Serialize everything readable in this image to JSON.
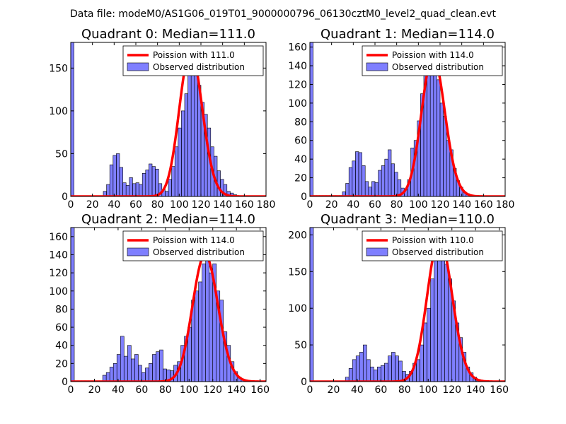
{
  "suptitle": "Data file: modeM0/AS1G06_019T01_9000000796_06130cztM0_level2_quad_clean.evt",
  "chart_data": [
    {
      "type": "bar",
      "title": "Quadrant 0: Median=111.0",
      "median": 111.0,
      "xlim": [
        0,
        180
      ],
      "ylim": [
        0,
        180
      ],
      "xticks": [
        "0",
        "20",
        "40",
        "60",
        "80",
        "100",
        "120",
        "140",
        "160",
        "180"
      ],
      "yticks": [
        "0",
        "50",
        "100",
        "150"
      ],
      "bin_width": 3,
      "bins_start": [
        0,
        3,
        6,
        9,
        12,
        15,
        18,
        21,
        24,
        27,
        30,
        33,
        36,
        39,
        42,
        45,
        48,
        51,
        54,
        57,
        60,
        63,
        66,
        69,
        72,
        75,
        78,
        81,
        84,
        87,
        90,
        93,
        96,
        99,
        102,
        105,
        108,
        111,
        114,
        117,
        120,
        123,
        126,
        129,
        132,
        135,
        138,
        141,
        144,
        147,
        150,
        153,
        156,
        159,
        162,
        165
      ],
      "counts": [
        180,
        1,
        1,
        1,
        1,
        1,
        1,
        1,
        1,
        1,
        6,
        14,
        37,
        48,
        50,
        34,
        16,
        13,
        22,
        15,
        16,
        14,
        27,
        31,
        38,
        35,
        32,
        15,
        8,
        6,
        20,
        35,
        58,
        80,
        100,
        120,
        150,
        170,
        160,
        130,
        110,
        96,
        80,
        58,
        47,
        30,
        20,
        14,
        6,
        4,
        2,
        1,
        1,
        0,
        0,
        0
      ],
      "legend": [
        "Poission with 111.0",
        "Observed distribution"
      ],
      "legend_loc": "upper right"
    },
    {
      "type": "bar",
      "title": "Quadrant 1: Median=114.0",
      "median": 114.0,
      "xlim": [
        0,
        180
      ],
      "ylim": [
        0,
        165
      ],
      "xticks": [
        "0",
        "20",
        "40",
        "60",
        "80",
        "100",
        "120",
        "140",
        "160",
        "180"
      ],
      "yticks": [
        "0",
        "20",
        "40",
        "60",
        "80",
        "100",
        "120",
        "140",
        "160"
      ],
      "bin_width": 3,
      "bins_start": [
        0,
        3,
        6,
        9,
        12,
        15,
        18,
        21,
        24,
        27,
        30,
        33,
        36,
        39,
        42,
        45,
        48,
        51,
        54,
        57,
        60,
        63,
        66,
        69,
        72,
        75,
        78,
        81,
        84,
        87,
        90,
        93,
        96,
        99,
        102,
        105,
        108,
        111,
        114,
        117,
        120,
        123,
        126,
        129,
        132,
        135,
        138,
        141,
        144,
        147,
        150,
        153,
        156,
        159,
        162,
        165
      ],
      "counts": [
        165,
        1,
        1,
        1,
        1,
        1,
        1,
        1,
        1,
        1,
        5,
        14,
        31,
        38,
        48,
        47,
        33,
        16,
        10,
        16,
        15,
        28,
        33,
        40,
        50,
        35,
        26,
        18,
        9,
        7,
        18,
        52,
        60,
        81,
        110,
        130,
        145,
        150,
        140,
        125,
        100,
        86,
        60,
        50,
        30,
        17,
        10,
        5,
        3,
        1,
        1,
        0,
        0,
        0,
        0,
        0
      ],
      "legend": [
        "Poission with 114.0",
        "Observed distribution"
      ],
      "legend_loc": "upper right"
    },
    {
      "type": "bar",
      "title": "Quadrant 2: Median=114.0",
      "median": 114.0,
      "xlim": [
        0,
        165
      ],
      "ylim": [
        0,
        170
      ],
      "xticks": [
        "0",
        "20",
        "40",
        "60",
        "80",
        "100",
        "120",
        "140",
        "160"
      ],
      "yticks": [
        "0",
        "20",
        "40",
        "60",
        "80",
        "100",
        "120",
        "140",
        "160"
      ],
      "bin_width": 3,
      "bins_start": [
        0,
        3,
        6,
        9,
        12,
        15,
        18,
        21,
        24,
        27,
        30,
        33,
        36,
        39,
        42,
        45,
        48,
        51,
        54,
        57,
        60,
        63,
        66,
        69,
        72,
        75,
        78,
        81,
        84,
        87,
        90,
        93,
        96,
        99,
        102,
        105,
        108,
        111,
        114,
        117,
        120,
        123,
        126,
        129,
        132,
        135,
        138,
        141,
        144,
        147,
        150,
        153,
        156,
        159,
        162
      ],
      "counts": [
        170,
        1,
        1,
        1,
        1,
        1,
        1,
        1,
        1,
        7,
        10,
        16,
        20,
        30,
        50,
        28,
        40,
        25,
        30,
        18,
        10,
        15,
        20,
        30,
        33,
        35,
        14,
        13,
        12,
        18,
        22,
        40,
        50,
        60,
        90,
        100,
        110,
        130,
        140,
        120,
        130,
        100,
        90,
        55,
        40,
        22,
        11,
        5,
        2,
        1,
        1,
        0,
        0,
        0,
        0
      ],
      "legend": [
        "Poission with 114.0",
        "Observed distribution"
      ],
      "legend_loc": "upper right"
    },
    {
      "type": "bar",
      "title": "Quadrant 3: Median=110.0",
      "median": 110.0,
      "xlim": [
        0,
        165
      ],
      "ylim": [
        0,
        210
      ],
      "xticks": [
        "0",
        "20",
        "40",
        "60",
        "80",
        "100",
        "120",
        "140",
        "160"
      ],
      "yticks": [
        "0",
        "50",
        "100",
        "150",
        "200"
      ],
      "bin_width": 3,
      "bins_start": [
        0,
        3,
        6,
        9,
        12,
        15,
        18,
        21,
        24,
        27,
        30,
        33,
        36,
        39,
        42,
        45,
        48,
        51,
        54,
        57,
        60,
        63,
        66,
        69,
        72,
        75,
        78,
        81,
        84,
        87,
        90,
        93,
        96,
        99,
        102,
        105,
        108,
        111,
        114,
        117,
        120,
        123,
        126,
        129,
        132,
        135,
        138,
        141,
        144,
        147,
        150,
        153,
        156,
        159,
        162
      ],
      "counts": [
        210,
        1,
        1,
        1,
        1,
        1,
        1,
        1,
        1,
        1,
        6,
        18,
        30,
        35,
        40,
        50,
        30,
        20,
        16,
        20,
        22,
        25,
        35,
        40,
        35,
        28,
        14,
        10,
        14,
        25,
        30,
        50,
        80,
        100,
        140,
        170,
        190,
        195,
        160,
        140,
        110,
        80,
        60,
        40,
        20,
        12,
        6,
        3,
        1,
        1,
        0,
        0,
        0,
        0,
        0
      ],
      "legend": [
        "Poission with 110.0",
        "Observed distribution"
      ],
      "legend_loc": "upper right"
    }
  ]
}
